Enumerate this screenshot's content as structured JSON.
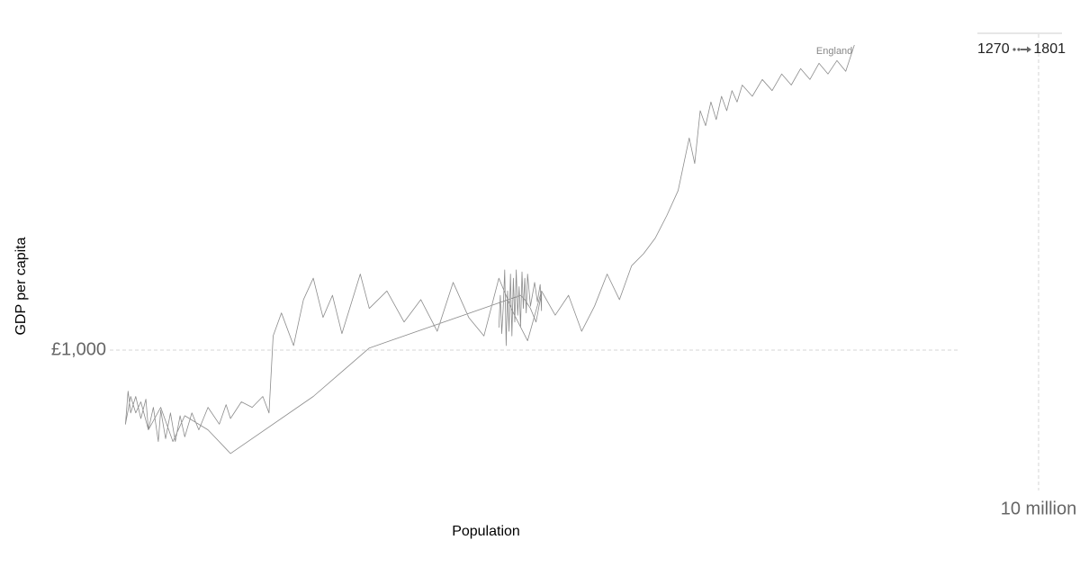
{
  "chart_data": {
    "type": "line",
    "title": "",
    "xlabel": "Population",
    "ylabel": "GDP per capita",
    "x_scale": "log",
    "y_scale": "log",
    "x_ticks": [
      {
        "value": 10000000,
        "label": "10 million"
      }
    ],
    "y_ticks": [
      {
        "value": 1000,
        "label": "£1,000"
      }
    ],
    "grid": true,
    "time_range": {
      "start": "1270",
      "end": "1801"
    },
    "series": [
      {
        "name": "England",
        "color": "#8c8c8c",
        "points": [
          [
            1270,
            4500000,
            1018
          ],
          [
            1271,
            4510000,
            1090
          ],
          [
            1272,
            4520000,
            1005
          ],
          [
            1273,
            4530000,
            1060
          ],
          [
            1274,
            4540000,
            1150
          ],
          [
            1275,
            4550000,
            980
          ],
          [
            1276,
            4560000,
            1100
          ],
          [
            1277,
            4570000,
            1010
          ],
          [
            1278,
            4580000,
            1140
          ],
          [
            1279,
            4590000,
            1000
          ],
          [
            1280,
            4600000,
            1130
          ],
          [
            1281,
            4610000,
            1030
          ],
          [
            1282,
            4620000,
            1150
          ],
          [
            1283,
            4630000,
            1045
          ],
          [
            1284,
            4640000,
            1110
          ],
          [
            1285,
            4650000,
            1020
          ],
          [
            1286,
            4660000,
            1145
          ],
          [
            1287,
            4670000,
            1060
          ],
          [
            1288,
            4680000,
            1130
          ],
          [
            1289,
            4690000,
            1050
          ],
          [
            1290,
            4700000,
            1140
          ],
          [
            1295,
            4720000,
            1065
          ],
          [
            1300,
            4750000,
            1120
          ],
          [
            1305,
            4770000,
            1075
          ],
          [
            1310,
            4790000,
            1115
          ],
          [
            1315,
            4800000,
            1055
          ],
          [
            1320,
            4800000,
            1095
          ],
          [
            1325,
            4760000,
            1030
          ],
          [
            1330,
            4720000,
            1060
          ],
          [
            1340,
            4680000,
            1080
          ],
          [
            1347,
            4650000,
            1090
          ],
          [
            1350,
            3700000,
            975
          ],
          [
            1355,
            3400000,
            880
          ],
          [
            1360,
            3000000,
            780
          ],
          [
            1365,
            2900000,
            820
          ],
          [
            1370,
            2800000,
            845
          ],
          [
            1375,
            2750000,
            800
          ],
          [
            1380,
            2700000,
            860
          ],
          [
            1385,
            2650000,
            820
          ],
          [
            1390,
            2620000,
            870
          ],
          [
            1395,
            2600000,
            850
          ],
          [
            1400,
            2580000,
            880
          ],
          [
            1405,
            2560000,
            830
          ],
          [
            1410,
            2570000,
            890
          ],
          [
            1415,
            2580000,
            850
          ],
          [
            1420,
            2600000,
            880
          ],
          [
            1425,
            2620000,
            840
          ],
          [
            1430,
            2640000,
            875
          ],
          [
            1435,
            2650000,
            820
          ],
          [
            1440,
            2670000,
            860
          ],
          [
            1445,
            2690000,
            800
          ],
          [
            1450,
            2700000,
            855
          ],
          [
            1455,
            2720000,
            805
          ],
          [
            1460,
            2740000,
            850
          ],
          [
            1465,
            2760000,
            800
          ],
          [
            1470,
            2780000,
            845
          ],
          [
            1475,
            2800000,
            808
          ],
          [
            1480,
            2830000,
            850
          ],
          [
            1485,
            2860000,
            820
          ],
          [
            1490,
            2900000,
            860
          ],
          [
            1495,
            2950000,
            830
          ],
          [
            1500,
            2980000,
            865
          ],
          [
            1505,
            3000000,
            840
          ],
          [
            1510,
            3050000,
            870
          ],
          [
            1515,
            3100000,
            860
          ],
          [
            1520,
            3150000,
            880
          ],
          [
            1525,
            3180000,
            850
          ],
          [
            1530,
            3200000,
            1000
          ],
          [
            1535,
            3240000,
            1050
          ],
          [
            1540,
            3300000,
            980
          ],
          [
            1545,
            3350000,
            1080
          ],
          [
            1550,
            3400000,
            1130
          ],
          [
            1555,
            3450000,
            1040
          ],
          [
            1560,
            3500000,
            1090
          ],
          [
            1565,
            3550000,
            1005
          ],
          [
            1570,
            3650000,
            1140
          ],
          [
            1575,
            3700000,
            1060
          ],
          [
            1580,
            3800000,
            1100
          ],
          [
            1585,
            3900000,
            1030
          ],
          [
            1590,
            4000000,
            1080
          ],
          [
            1595,
            4100000,
            1010
          ],
          [
            1600,
            4200000,
            1120
          ],
          [
            1605,
            4300000,
            1040
          ],
          [
            1610,
            4400000,
            1000
          ],
          [
            1615,
            4500000,
            1130
          ],
          [
            1620,
            4600000,
            1050
          ],
          [
            1625,
            4700000,
            990
          ],
          [
            1630,
            4800000,
            1100
          ],
          [
            1635,
            4900000,
            1045
          ],
          [
            1640,
            5000000,
            1090
          ],
          [
            1645,
            5100000,
            1010
          ],
          [
            1650,
            5200000,
            1065
          ],
          [
            1655,
            5300000,
            1140
          ],
          [
            1660,
            5400000,
            1080
          ],
          [
            1665,
            5500000,
            1160
          ],
          [
            1670,
            5600000,
            1190
          ],
          [
            1675,
            5700000,
            1230
          ],
          [
            1680,
            5800000,
            1290
          ],
          [
            1685,
            5900000,
            1360
          ],
          [
            1690,
            6000000,
            1520
          ],
          [
            1695,
            6050000,
            1440
          ],
          [
            1700,
            6100000,
            1610
          ],
          [
            1705,
            6150000,
            1560
          ],
          [
            1710,
            6200000,
            1640
          ],
          [
            1715,
            6250000,
            1580
          ],
          [
            1720,
            6300000,
            1660
          ],
          [
            1725,
            6350000,
            1610
          ],
          [
            1730,
            6400000,
            1680
          ],
          [
            1735,
            6450000,
            1640
          ],
          [
            1740,
            6500000,
            1700
          ],
          [
            1745,
            6600000,
            1660
          ],
          [
            1750,
            6700000,
            1720
          ],
          [
            1755,
            6800000,
            1680
          ],
          [
            1760,
            6900000,
            1740
          ],
          [
            1765,
            7000000,
            1700
          ],
          [
            1770,
            7100000,
            1760
          ],
          [
            1775,
            7200000,
            1720
          ],
          [
            1780,
            7300000,
            1780
          ],
          [
            1785,
            7400000,
            1740
          ],
          [
            1790,
            7500000,
            1790
          ],
          [
            1795,
            7600000,
            1750
          ],
          [
            1801,
            7700000,
            1850
          ]
        ]
      }
    ]
  }
}
